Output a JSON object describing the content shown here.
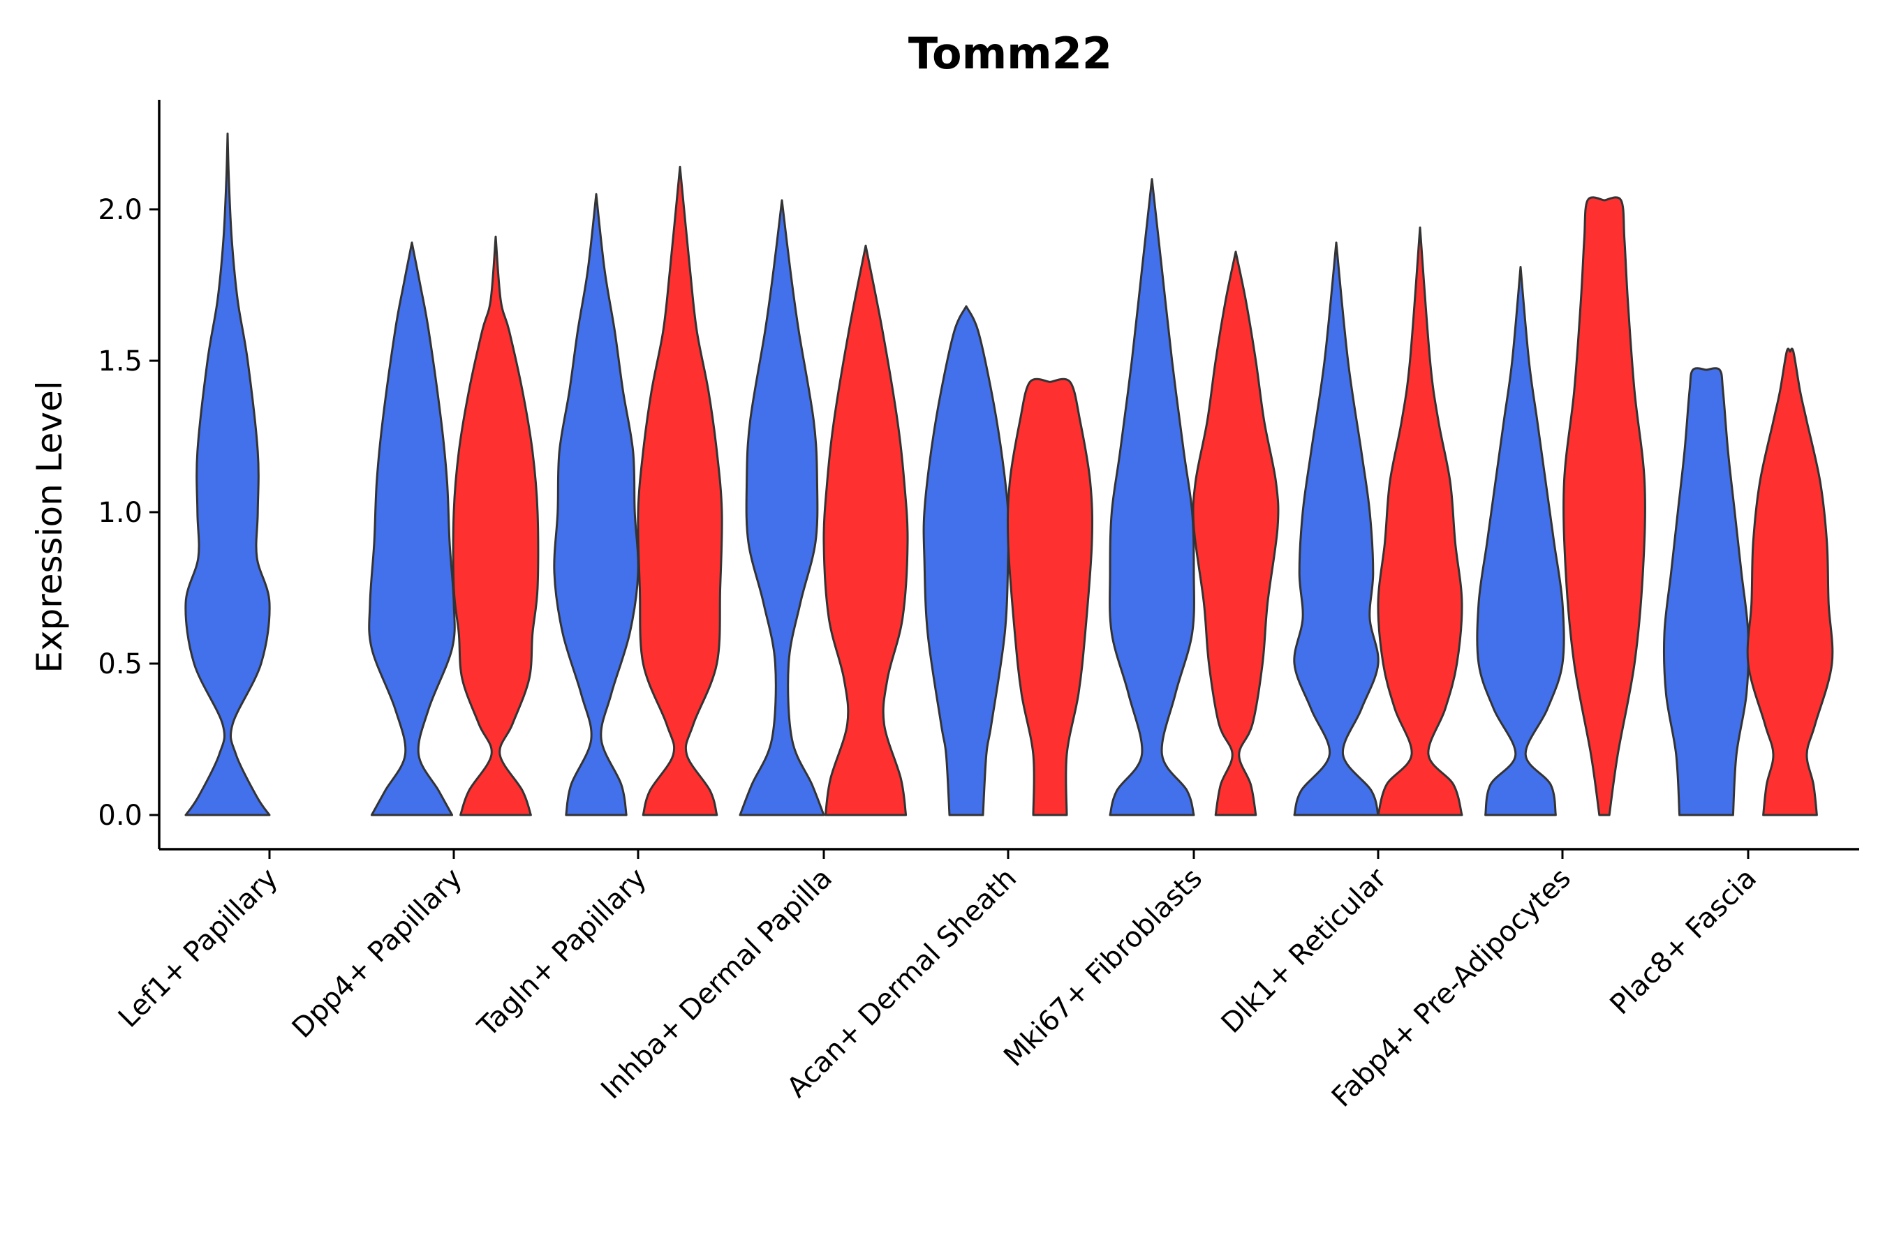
{
  "chart_data": {
    "type": "violin",
    "title": "Tomm22",
    "xlabel": "",
    "ylabel": "Expression Level",
    "ylim": [
      -0.11,
      2.36
    ],
    "yticks": [
      0.0,
      0.5,
      1.0,
      1.5,
      2.0
    ],
    "ytick_labels": [
      "0.0",
      "0.5",
      "1.0",
      "1.5",
      "2.0"
    ],
    "grid": false,
    "legend": "none",
    "colors": {
      "group_a": "#4370EB",
      "group_b": "#FF3030"
    },
    "categories": [
      "Lef1+ Papillary",
      "Dpp4+ Papillary",
      "Tagln+ Papillary",
      "Inhba+ Dermal Papilla",
      "Acan+ Dermal Sheath",
      "Mki67+ Fibroblasts",
      "Dlk1+ Reticular",
      "Fabp4+ Pre-Adipocytes",
      "Plac8+ Fascia"
    ],
    "series": [
      {
        "name": "group_a",
        "color": "#4370EB"
      },
      {
        "name": "group_b",
        "color": "#FF3030"
      }
    ],
    "violins": [
      {
        "category": "Lef1+ Papillary",
        "group": "group_a",
        "max": 2.25,
        "profile": [
          [
            0.0,
            0.5
          ],
          [
            0.06,
            0.35
          ],
          [
            0.2,
            0.1
          ],
          [
            0.3,
            0.06
          ],
          [
            0.5,
            0.4
          ],
          [
            0.7,
            0.5
          ],
          [
            0.85,
            0.35
          ],
          [
            1.0,
            0.36
          ],
          [
            1.2,
            0.36
          ],
          [
            1.5,
            0.24
          ],
          [
            1.7,
            0.12
          ],
          [
            1.9,
            0.05
          ],
          [
            2.1,
            0.015
          ],
          [
            2.25,
            0.0
          ]
        ]
      },
      {
        "category": "Dpp4+ Papillary",
        "group": "group_a",
        "max": 1.89,
        "profile": [
          [
            0.0,
            0.48
          ],
          [
            0.08,
            0.32
          ],
          [
            0.2,
            0.08
          ],
          [
            0.35,
            0.2
          ],
          [
            0.55,
            0.48
          ],
          [
            0.7,
            0.5
          ],
          [
            0.9,
            0.45
          ],
          [
            1.1,
            0.42
          ],
          [
            1.3,
            0.35
          ],
          [
            1.6,
            0.2
          ],
          [
            1.75,
            0.1
          ],
          [
            1.89,
            0.0
          ]
        ]
      },
      {
        "category": "Dpp4+ Papillary",
        "group": "group_b",
        "max": 1.91,
        "profile": [
          [
            0.0,
            0.42
          ],
          [
            0.08,
            0.32
          ],
          [
            0.2,
            0.05
          ],
          [
            0.3,
            0.2
          ],
          [
            0.45,
            0.4
          ],
          [
            0.6,
            0.44
          ],
          [
            0.75,
            0.5
          ],
          [
            1.0,
            0.5
          ],
          [
            1.2,
            0.44
          ],
          [
            1.4,
            0.32
          ],
          [
            1.6,
            0.16
          ],
          [
            1.7,
            0.06
          ],
          [
            1.91,
            0.0
          ]
        ]
      },
      {
        "category": "Tagln+ Papillary",
        "group": "group_a",
        "max": 2.05,
        "profile": [
          [
            0.0,
            0.36
          ],
          [
            0.1,
            0.3
          ],
          [
            0.25,
            0.06
          ],
          [
            0.4,
            0.18
          ],
          [
            0.6,
            0.4
          ],
          [
            0.8,
            0.5
          ],
          [
            1.0,
            0.46
          ],
          [
            1.2,
            0.44
          ],
          [
            1.4,
            0.32
          ],
          [
            1.6,
            0.22
          ],
          [
            1.8,
            0.1
          ],
          [
            2.05,
            0.0
          ]
        ]
      },
      {
        "category": "Tagln+ Papillary",
        "group": "group_b",
        "max": 2.14,
        "profile": [
          [
            0.0,
            0.44
          ],
          [
            0.08,
            0.36
          ],
          [
            0.2,
            0.08
          ],
          [
            0.3,
            0.16
          ],
          [
            0.5,
            0.44
          ],
          [
            0.75,
            0.48
          ],
          [
            1.0,
            0.5
          ],
          [
            1.2,
            0.44
          ],
          [
            1.4,
            0.34
          ],
          [
            1.6,
            0.2
          ],
          [
            1.8,
            0.12
          ],
          [
            2.14,
            0.0
          ]
        ]
      },
      {
        "category": "Inhba+ Dermal Papilla",
        "group": "group_a",
        "max": 2.03,
        "profile": [
          [
            0.0,
            0.5
          ],
          [
            0.1,
            0.36
          ],
          [
            0.25,
            0.12
          ],
          [
            0.5,
            0.08
          ],
          [
            0.7,
            0.22
          ],
          [
            0.9,
            0.4
          ],
          [
            1.1,
            0.42
          ],
          [
            1.3,
            0.38
          ],
          [
            1.6,
            0.2
          ],
          [
            1.8,
            0.1
          ],
          [
            2.03,
            0.0
          ]
        ]
      },
      {
        "category": "Inhba+ Dermal Papilla",
        "group": "group_b",
        "max": 1.88,
        "profile": [
          [
            0.0,
            0.48
          ],
          [
            0.12,
            0.42
          ],
          [
            0.3,
            0.22
          ],
          [
            0.45,
            0.26
          ],
          [
            0.65,
            0.44
          ],
          [
            0.9,
            0.5
          ],
          [
            1.1,
            0.46
          ],
          [
            1.3,
            0.38
          ],
          [
            1.6,
            0.2
          ],
          [
            1.88,
            0.0
          ]
        ]
      },
      {
        "category": "Acan+ Dermal Sheath",
        "group": "group_a",
        "max": 1.68,
        "profile": [
          [
            0.0,
            0.2
          ],
          [
            0.2,
            0.24
          ],
          [
            0.3,
            0.3
          ],
          [
            0.6,
            0.46
          ],
          [
            0.85,
            0.5
          ],
          [
            1.0,
            0.5
          ],
          [
            1.2,
            0.42
          ],
          [
            1.4,
            0.3
          ],
          [
            1.6,
            0.14
          ],
          [
            1.68,
            0.0
          ]
        ]
      },
      {
        "category": "Acan+ Dermal Sheath",
        "group": "group_b",
        "max": 1.43,
        "profile": [
          [
            0.0,
            0.2
          ],
          [
            0.2,
            0.2
          ],
          [
            0.4,
            0.34
          ],
          [
            0.6,
            0.42
          ],
          [
            0.9,
            0.5
          ],
          [
            1.1,
            0.48
          ],
          [
            1.3,
            0.36
          ],
          [
            1.43,
            0.24
          ],
          [
            1.43,
            0.0
          ]
        ]
      },
      {
        "category": "Mki67+ Fibroblasts",
        "group": "group_a",
        "max": 2.1,
        "profile": [
          [
            0.0,
            0.5
          ],
          [
            0.08,
            0.42
          ],
          [
            0.2,
            0.12
          ],
          [
            0.4,
            0.28
          ],
          [
            0.6,
            0.48
          ],
          [
            0.8,
            0.5
          ],
          [
            1.0,
            0.48
          ],
          [
            1.2,
            0.38
          ],
          [
            1.5,
            0.24
          ],
          [
            1.8,
            0.12
          ],
          [
            2.1,
            0.0
          ]
        ]
      },
      {
        "category": "Mki67+ Fibroblasts",
        "group": "group_b",
        "max": 1.86,
        "profile": [
          [
            0.0,
            0.24
          ],
          [
            0.1,
            0.18
          ],
          [
            0.2,
            0.04
          ],
          [
            0.3,
            0.2
          ],
          [
            0.5,
            0.32
          ],
          [
            0.7,
            0.38
          ],
          [
            0.95,
            0.5
          ],
          [
            1.1,
            0.48
          ],
          [
            1.3,
            0.34
          ],
          [
            1.5,
            0.24
          ],
          [
            1.7,
            0.12
          ],
          [
            1.86,
            0.0
          ]
        ]
      },
      {
        "category": "Dlk1+ Reticular",
        "group": "group_a",
        "max": 1.89,
        "profile": [
          [
            0.0,
            0.5
          ],
          [
            0.08,
            0.42
          ],
          [
            0.2,
            0.08
          ],
          [
            0.35,
            0.3
          ],
          [
            0.5,
            0.5
          ],
          [
            0.65,
            0.4
          ],
          [
            0.8,
            0.44
          ],
          [
            1.0,
            0.4
          ],
          [
            1.2,
            0.3
          ],
          [
            1.5,
            0.14
          ],
          [
            1.89,
            0.0
          ]
        ]
      },
      {
        "category": "Dlk1+ Reticular",
        "group": "group_b",
        "max": 1.94,
        "profile": [
          [
            0.0,
            0.5
          ],
          [
            0.1,
            0.4
          ],
          [
            0.2,
            0.1
          ],
          [
            0.35,
            0.3
          ],
          [
            0.5,
            0.44
          ],
          [
            0.7,
            0.5
          ],
          [
            0.9,
            0.42
          ],
          [
            1.1,
            0.36
          ],
          [
            1.3,
            0.22
          ],
          [
            1.5,
            0.12
          ],
          [
            1.94,
            0.0
          ]
        ]
      },
      {
        "category": "Fabp4+ Pre-Adipocytes",
        "group": "group_a",
        "max": 1.81,
        "profile": [
          [
            0.0,
            0.42
          ],
          [
            0.1,
            0.36
          ],
          [
            0.2,
            0.06
          ],
          [
            0.35,
            0.32
          ],
          [
            0.5,
            0.5
          ],
          [
            0.7,
            0.5
          ],
          [
            0.9,
            0.4
          ],
          [
            1.1,
            0.3
          ],
          [
            1.3,
            0.2
          ],
          [
            1.5,
            0.1
          ],
          [
            1.81,
            0.0
          ]
        ]
      },
      {
        "category": "Fabp4+ Pre-Adipocytes",
        "group": "group_b",
        "max": 2.03,
        "profile": [
          [
            0.0,
            0.06
          ],
          [
            0.2,
            0.16
          ],
          [
            0.5,
            0.36
          ],
          [
            0.8,
            0.46
          ],
          [
            1.1,
            0.48
          ],
          [
            1.4,
            0.36
          ],
          [
            1.7,
            0.28
          ],
          [
            1.9,
            0.24
          ],
          [
            2.03,
            0.2
          ],
          [
            2.03,
            0.0
          ]
        ]
      },
      {
        "category": "Plac8+ Fascia",
        "group": "group_a",
        "max": 1.47,
        "profile": [
          [
            0.0,
            0.32
          ],
          [
            0.2,
            0.36
          ],
          [
            0.4,
            0.48
          ],
          [
            0.6,
            0.5
          ],
          [
            0.8,
            0.42
          ],
          [
            1.0,
            0.34
          ],
          [
            1.2,
            0.26
          ],
          [
            1.4,
            0.2
          ],
          [
            1.47,
            0.16
          ],
          [
            1.47,
            0.0
          ]
        ]
      },
      {
        "category": "Plac8+ Fascia",
        "group": "group_b",
        "max": 1.53,
        "profile": [
          [
            0.0,
            0.32
          ],
          [
            0.1,
            0.28
          ],
          [
            0.2,
            0.2
          ],
          [
            0.3,
            0.3
          ],
          [
            0.5,
            0.5
          ],
          [
            0.7,
            0.46
          ],
          [
            0.9,
            0.44
          ],
          [
            1.1,
            0.36
          ],
          [
            1.3,
            0.2
          ],
          [
            1.4,
            0.12
          ],
          [
            1.53,
            0.04
          ],
          [
            1.53,
            0.0
          ]
        ]
      }
    ]
  }
}
